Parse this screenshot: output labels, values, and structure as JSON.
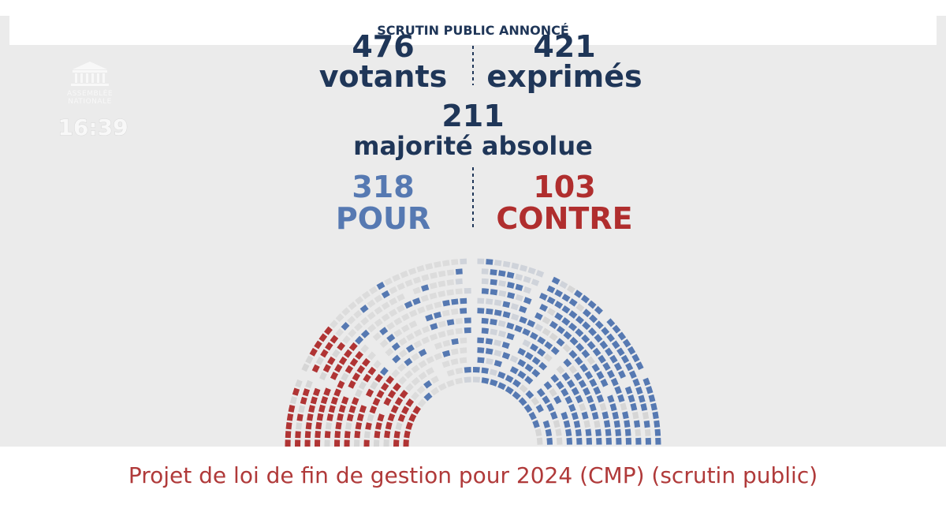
{
  "header": {
    "label": "SCRUTIN PUBLIC ANNONCÉ"
  },
  "logo": {
    "line1": "ASSEMBLÉE",
    "line2": "NATIONALE"
  },
  "clock": "16:39",
  "results": {
    "votants": {
      "value": 476,
      "label": "votants"
    },
    "exprimes": {
      "value": 421,
      "label": "exprimés"
    },
    "majorite": {
      "value": 211,
      "label": "majorité absolue"
    },
    "pour": {
      "value": 318,
      "label": "POUR"
    },
    "contre": {
      "value": 103,
      "label": "CONTRE"
    }
  },
  "footer": {
    "title": "Projet de loi de fin de gestion pour 2024 (CMP) (scrutin public)"
  }
}
